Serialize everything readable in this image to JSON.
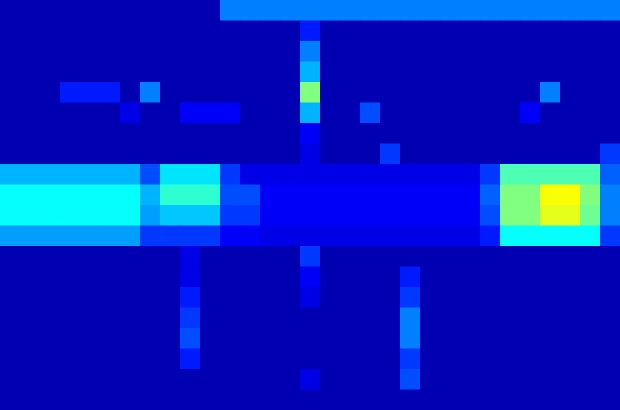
{
  "chart_data": {
    "type": "heatmap",
    "tick_labels": false,
    "zlim": [
      0,
      1
    ],
    "cells": [
      [
        0.05,
        0.05,
        0.05,
        0.05,
        0.05,
        0.05,
        0.05,
        0.05,
        0.05,
        0.05,
        0.05,
        0.25,
        0.25,
        0.25,
        0.25,
        0.25,
        0.25,
        0.25,
        0.25,
        0.25,
        0.25,
        0.25,
        0.25,
        0.25,
        0.25,
        0.25,
        0.25,
        0.25,
        0.25,
        0.25,
        0.25
      ],
      [
        0.05,
        0.05,
        0.05,
        0.05,
        0.05,
        0.05,
        0.05,
        0.05,
        0.05,
        0.05,
        0.05,
        0.05,
        0.05,
        0.05,
        0.05,
        0.15,
        0.05,
        0.05,
        0.05,
        0.05,
        0.05,
        0.05,
        0.05,
        0.05,
        0.05,
        0.05,
        0.05,
        0.05,
        0.05,
        0.05,
        0.05
      ],
      [
        0.05,
        0.05,
        0.05,
        0.05,
        0.05,
        0.05,
        0.05,
        0.05,
        0.05,
        0.05,
        0.05,
        0.05,
        0.05,
        0.05,
        0.05,
        0.25,
        0.05,
        0.05,
        0.05,
        0.05,
        0.05,
        0.05,
        0.05,
        0.05,
        0.05,
        0.05,
        0.05,
        0.05,
        0.05,
        0.05,
        0.05
      ],
      [
        0.05,
        0.05,
        0.05,
        0.05,
        0.05,
        0.05,
        0.05,
        0.05,
        0.05,
        0.05,
        0.05,
        0.05,
        0.05,
        0.05,
        0.05,
        0.3,
        0.05,
        0.05,
        0.05,
        0.05,
        0.05,
        0.05,
        0.05,
        0.05,
        0.05,
        0.05,
        0.05,
        0.05,
        0.05,
        0.05,
        0.05
      ],
      [
        0.05,
        0.05,
        0.05,
        0.15,
        0.15,
        0.15,
        0.05,
        0.25,
        0.05,
        0.05,
        0.05,
        0.05,
        0.05,
        0.05,
        0.05,
        0.5,
        0.05,
        0.05,
        0.05,
        0.05,
        0.05,
        0.05,
        0.05,
        0.05,
        0.05,
        0.05,
        0.05,
        0.25,
        0.05,
        0.05,
        0.05
      ],
      [
        0.05,
        0.05,
        0.05,
        0.05,
        0.05,
        0.05,
        0.1,
        0.05,
        0.05,
        0.12,
        0.12,
        0.12,
        0.05,
        0.05,
        0.05,
        0.3,
        0.05,
        0.05,
        0.2,
        0.05,
        0.05,
        0.05,
        0.05,
        0.05,
        0.05,
        0.05,
        0.12,
        0.05,
        0.05,
        0.05,
        0.05
      ],
      [
        0.05,
        0.05,
        0.05,
        0.05,
        0.05,
        0.05,
        0.05,
        0.05,
        0.05,
        0.05,
        0.05,
        0.05,
        0.05,
        0.05,
        0.05,
        0.12,
        0.05,
        0.05,
        0.05,
        0.05,
        0.05,
        0.05,
        0.05,
        0.05,
        0.05,
        0.05,
        0.05,
        0.05,
        0.05,
        0.05,
        0.05
      ],
      [
        0.05,
        0.05,
        0.05,
        0.05,
        0.05,
        0.05,
        0.05,
        0.05,
        0.05,
        0.05,
        0.05,
        0.05,
        0.05,
        0.05,
        0.05,
        0.1,
        0.05,
        0.05,
        0.05,
        0.18,
        0.05,
        0.05,
        0.05,
        0.05,
        0.05,
        0.05,
        0.05,
        0.05,
        0.05,
        0.05,
        0.18
      ],
      [
        0.3,
        0.3,
        0.3,
        0.3,
        0.3,
        0.3,
        0.3,
        0.2,
        0.35,
        0.35,
        0.35,
        0.18,
        0.1,
        0.1,
        0.1,
        0.1,
        0.1,
        0.1,
        0.1,
        0.1,
        0.1,
        0.1,
        0.1,
        0.1,
        0.18,
        0.45,
        0.45,
        0.45,
        0.45,
        0.45,
        0.22
      ],
      [
        0.38,
        0.38,
        0.38,
        0.38,
        0.38,
        0.38,
        0.38,
        0.3,
        0.42,
        0.42,
        0.42,
        0.2,
        0.2,
        0.12,
        0.12,
        0.12,
        0.12,
        0.12,
        0.12,
        0.12,
        0.12,
        0.12,
        0.12,
        0.12,
        0.22,
        0.5,
        0.5,
        0.62,
        0.62,
        0.5,
        0.25
      ],
      [
        0.38,
        0.38,
        0.38,
        0.38,
        0.38,
        0.38,
        0.38,
        0.28,
        0.32,
        0.32,
        0.32,
        0.18,
        0.18,
        0.12,
        0.12,
        0.12,
        0.12,
        0.12,
        0.12,
        0.12,
        0.12,
        0.12,
        0.12,
        0.12,
        0.2,
        0.5,
        0.5,
        0.6,
        0.6,
        0.48,
        0.25
      ],
      [
        0.28,
        0.28,
        0.28,
        0.28,
        0.28,
        0.28,
        0.28,
        0.18,
        0.18,
        0.18,
        0.18,
        0.12,
        0.12,
        0.1,
        0.1,
        0.1,
        0.1,
        0.1,
        0.1,
        0.1,
        0.1,
        0.1,
        0.1,
        0.1,
        0.15,
        0.38,
        0.38,
        0.38,
        0.38,
        0.38,
        0.18
      ],
      [
        0.05,
        0.05,
        0.05,
        0.05,
        0.05,
        0.05,
        0.05,
        0.05,
        0.05,
        0.1,
        0.05,
        0.05,
        0.05,
        0.05,
        0.05,
        0.18,
        0.05,
        0.05,
        0.05,
        0.05,
        0.05,
        0.05,
        0.05,
        0.05,
        0.05,
        0.05,
        0.05,
        0.05,
        0.05,
        0.05,
        0.05
      ],
      [
        0.05,
        0.05,
        0.05,
        0.05,
        0.05,
        0.05,
        0.05,
        0.05,
        0.05,
        0.1,
        0.05,
        0.05,
        0.05,
        0.05,
        0.05,
        0.12,
        0.05,
        0.05,
        0.05,
        0.05,
        0.15,
        0.05,
        0.05,
        0.05,
        0.05,
        0.05,
        0.05,
        0.05,
        0.05,
        0.05,
        0.05
      ],
      [
        0.05,
        0.05,
        0.05,
        0.05,
        0.05,
        0.05,
        0.05,
        0.05,
        0.05,
        0.15,
        0.05,
        0.05,
        0.05,
        0.05,
        0.05,
        0.1,
        0.05,
        0.05,
        0.05,
        0.05,
        0.18,
        0.05,
        0.05,
        0.05,
        0.05,
        0.05,
        0.05,
        0.05,
        0.05,
        0.05,
        0.05
      ],
      [
        0.05,
        0.05,
        0.05,
        0.05,
        0.05,
        0.05,
        0.05,
        0.05,
        0.05,
        0.18,
        0.05,
        0.05,
        0.05,
        0.05,
        0.05,
        0.05,
        0.05,
        0.05,
        0.05,
        0.05,
        0.25,
        0.05,
        0.05,
        0.05,
        0.05,
        0.05,
        0.05,
        0.05,
        0.05,
        0.05,
        0.05
      ],
      [
        0.05,
        0.05,
        0.05,
        0.05,
        0.05,
        0.05,
        0.05,
        0.05,
        0.05,
        0.2,
        0.05,
        0.05,
        0.05,
        0.05,
        0.05,
        0.05,
        0.05,
        0.05,
        0.05,
        0.05,
        0.25,
        0.05,
        0.05,
        0.05,
        0.05,
        0.05,
        0.05,
        0.05,
        0.05,
        0.05,
        0.05
      ],
      [
        0.05,
        0.05,
        0.05,
        0.05,
        0.05,
        0.05,
        0.05,
        0.05,
        0.05,
        0.15,
        0.05,
        0.05,
        0.05,
        0.05,
        0.05,
        0.05,
        0.05,
        0.05,
        0.05,
        0.05,
        0.18,
        0.05,
        0.05,
        0.05,
        0.05,
        0.05,
        0.05,
        0.05,
        0.05,
        0.05,
        0.05
      ],
      [
        0.05,
        0.05,
        0.05,
        0.05,
        0.05,
        0.05,
        0.05,
        0.05,
        0.05,
        0.05,
        0.05,
        0.05,
        0.05,
        0.05,
        0.05,
        0.1,
        0.05,
        0.05,
        0.05,
        0.05,
        0.2,
        0.05,
        0.05,
        0.05,
        0.05,
        0.05,
        0.05,
        0.05,
        0.05,
        0.05,
        0.05
      ],
      [
        0.05,
        0.05,
        0.05,
        0.05,
        0.05,
        0.05,
        0.05,
        0.05,
        0.05,
        0.05,
        0.05,
        0.05,
        0.05,
        0.05,
        0.05,
        0.05,
        0.05,
        0.05,
        0.05,
        0.05,
        0.05,
        0.05,
        0.05,
        0.05,
        0.05,
        0.05,
        0.05,
        0.05,
        0.05,
        0.05,
        0.05
      ]
    ]
  }
}
